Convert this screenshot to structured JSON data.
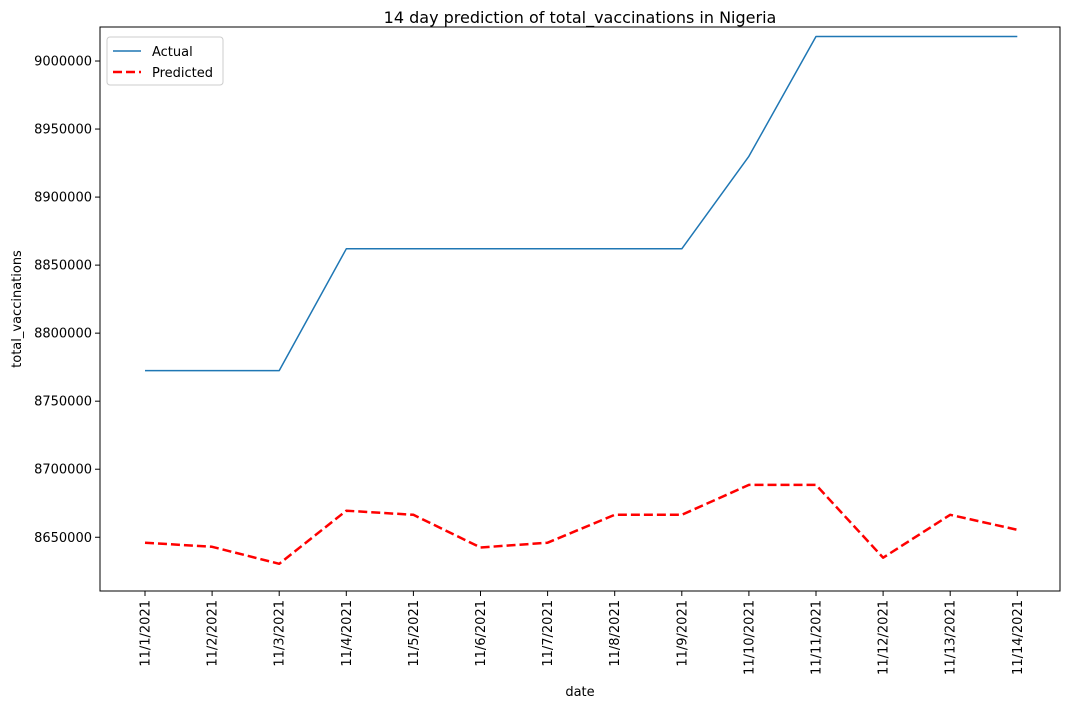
{
  "chart_data": {
    "type": "line",
    "title": "14 day prediction of total_vaccinations in Nigeria",
    "xlabel": "date",
    "ylabel": "total_vaccinations",
    "categories": [
      "11/1/2021",
      "11/2/2021",
      "11/3/2021",
      "11/4/2021",
      "11/5/2021",
      "11/6/2021",
      "11/7/2021",
      "11/8/2021",
      "11/9/2021",
      "11/10/2021",
      "11/11/2021",
      "11/12/2021",
      "11/13/2021",
      "11/14/2021"
    ],
    "ylim": [
      8610500,
      9025000
    ],
    "yticks": [
      8650000,
      8700000,
      8750000,
      8800000,
      8850000,
      8900000,
      8950000,
      9000000
    ],
    "grid": false,
    "legend": "upper-left",
    "series": [
      {
        "name": "Actual",
        "color": "#1f77b4",
        "style": "solid",
        "values": [
          8772500,
          8772500,
          8772500,
          8862000,
          8862000,
          8862000,
          8862000,
          8862000,
          8862000,
          8930000,
          9018000,
          9018000,
          9018000,
          9018000
        ]
      },
      {
        "name": "Predicted",
        "color": "#ff0000",
        "style": "dashed",
        "values": [
          8646000,
          8643000,
          8630500,
          8669500,
          8666500,
          8642500,
          8646000,
          8666500,
          8666500,
          8688500,
          8688500,
          8635000,
          8666500,
          8655500
        ]
      }
    ]
  }
}
